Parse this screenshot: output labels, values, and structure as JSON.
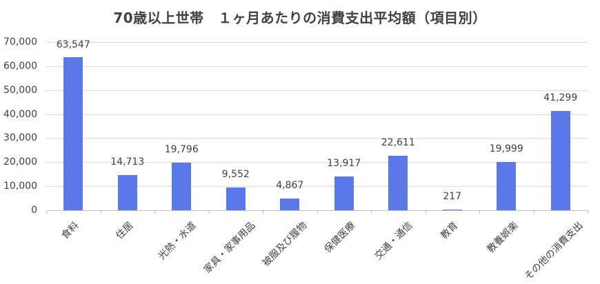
{
  "chart_data": {
    "type": "bar",
    "title": "70歳以上世帯　１ヶ月あたりの消費支出平均額（項目別）",
    "xlabel": "",
    "ylabel": "",
    "ylim": [
      0,
      70000
    ],
    "yticks": [
      "0",
      "10,000",
      "20,000",
      "30,000",
      "40,000",
      "50,000",
      "60,000",
      "70,000"
    ],
    "grid": true,
    "legend": "none",
    "bar_color": "#5b78e8",
    "categories": [
      "食料",
      "住居",
      "光熱・水道",
      "家具・家事用品",
      "被服及び履物",
      "保健医療",
      "交通・通信",
      "教育",
      "教養娯楽",
      "その他の消費支出"
    ],
    "values": [
      63547,
      14713,
      19796,
      9552,
      4867,
      13917,
      22611,
      217,
      19999,
      41299
    ],
    "data_labels": [
      "63,547",
      "14,713",
      "19,796",
      "9,552",
      "4,867",
      "13,917",
      "22,611",
      "217",
      "19,999",
      "41,299"
    ]
  }
}
